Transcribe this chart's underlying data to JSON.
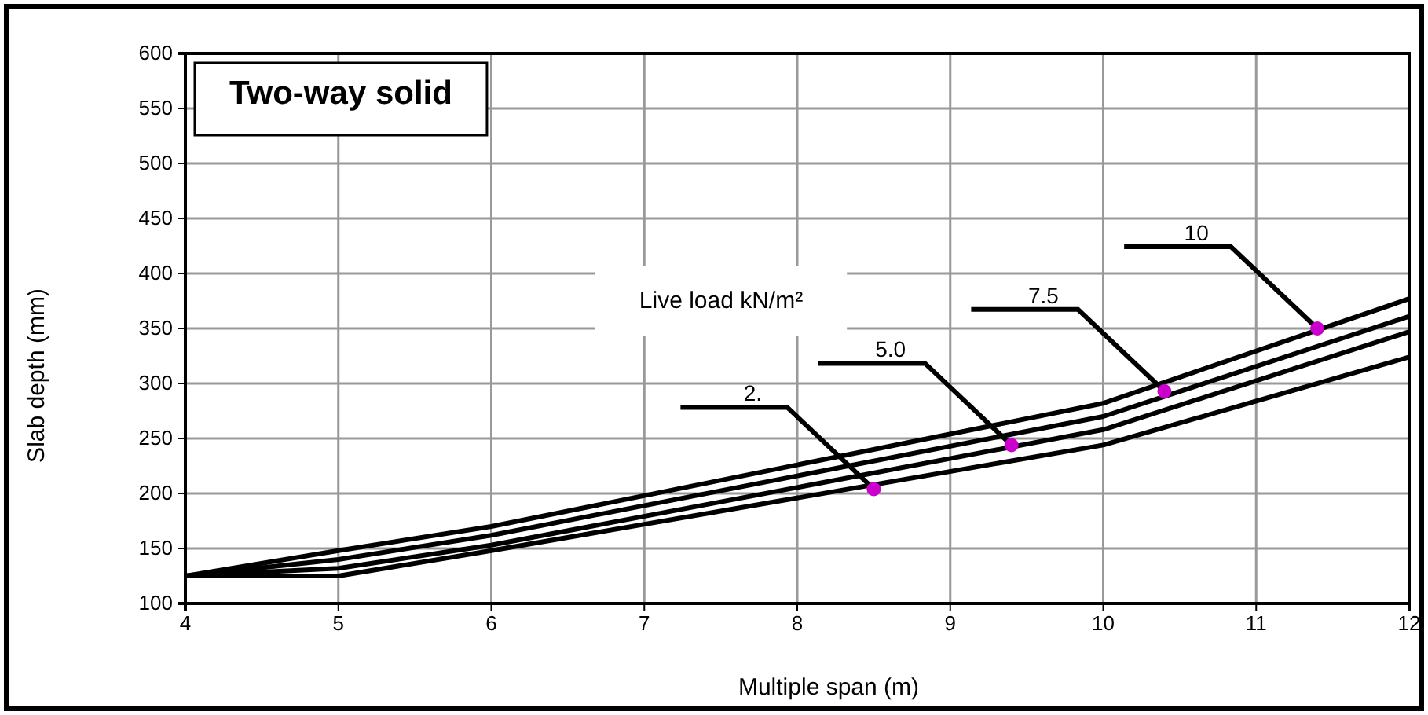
{
  "chart_data": {
    "type": "line",
    "title": "Two-way solid",
    "xlabel": "Multiple span (m)",
    "ylabel": "Slab depth (mm)",
    "xlim": [
      4,
      12
    ],
    "xticks": [
      4,
      5,
      6,
      7,
      8,
      9,
      10,
      11,
      12
    ],
    "ylim": [
      100,
      600
    ],
    "yticks": [
      100,
      150,
      200,
      250,
      300,
      350,
      400,
      450,
      500,
      550,
      600
    ],
    "grid": true,
    "marker": "none",
    "line_style": "solid",
    "series": [
      {
        "color": "#000000",
        "x": [
          4,
          5,
          6,
          10,
          12
        ],
        "values": [
          125,
          148,
          170,
          282,
          377
        ]
      },
      {
        "color": "#000000",
        "x": [
          4,
          5,
          6,
          10,
          12
        ],
        "values": [
          125,
          140,
          162,
          270,
          361
        ]
      },
      {
        "color": "#000000",
        "x": [
          4,
          5,
          6,
          10,
          12
        ],
        "values": [
          125,
          132,
          153,
          258,
          347
        ]
      },
      {
        "color": "#000000",
        "x": [
          4,
          5,
          6,
          10,
          12
        ],
        "values": [
          125,
          125,
          148,
          244,
          324
        ]
      }
    ],
    "annotations": [
      "Live load kN/m²",
      {
        "text": "2.",
        "x": 8.5,
        "y": 204
      },
      {
        "text": "5.0",
        "x": 9.4,
        "y": 244
      },
      {
        "text": "7.5",
        "x": 10.4,
        "y": 293
      },
      {
        "text": "10",
        "x": 11.4,
        "y": 350
      }
    ]
  }
}
